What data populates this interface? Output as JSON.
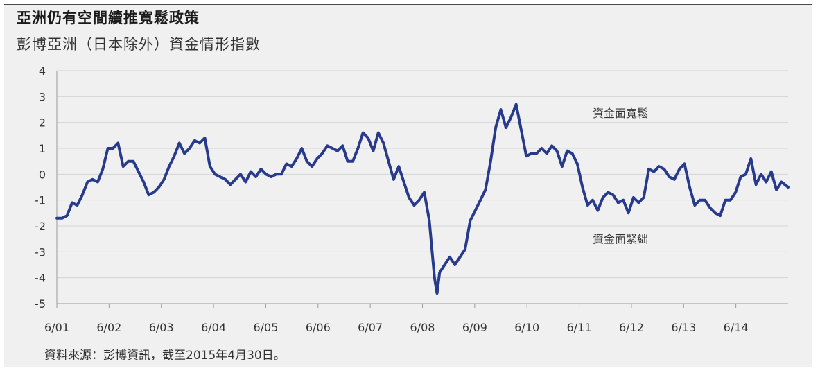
{
  "title": "亞洲仍有空間續推寬鬆政策",
  "subtitle": "彭博亞洲（日本除外）資金情形指數",
  "source": "資料來源：彭博資訊，截至2015年4月30日。",
  "colors": {
    "line": "#283a8c",
    "grid": "#d4d4d4",
    "panel": "#f0f0f0"
  },
  "chart_data": {
    "type": "line",
    "title": "彭博亞洲（日本除外）資金情形指數",
    "xlabel": "",
    "ylabel": "",
    "ylim": [
      -5,
      4
    ],
    "xlim": [
      2001.0,
      2015.33
    ],
    "grid": true,
    "x_ticks": [
      "6/01",
      "6/02",
      "6/03",
      "6/04",
      "6/05",
      "6/06",
      "6/07",
      "6/08",
      "6/09",
      "6/10",
      "6/11",
      "6/12",
      "6/13",
      "6/14"
    ],
    "y_ticks": [
      "4",
      "3",
      "2",
      "1",
      "0",
      "-1",
      "-2",
      "-3",
      "-4",
      "-5"
    ],
    "annotations": [
      {
        "text": "資金面寬鬆",
        "x": 2011.5,
        "y": 2.2
      },
      {
        "text": "資金面緊絀",
        "x": 2011.5,
        "y": -2.65
      }
    ],
    "series": [
      {
        "x": [
          2001.0,
          2001.1,
          2001.2,
          2001.3,
          2001.4,
          2001.5,
          2001.6,
          2001.7,
          2001.8,
          2001.9,
          2002.0,
          2002.1,
          2002.2,
          2002.3,
          2002.4,
          2002.5,
          2002.6,
          2002.7,
          2002.8,
          2002.9,
          2003.0,
          2003.1,
          2003.2,
          2003.3,
          2003.4,
          2003.5,
          2003.6,
          2003.7,
          2003.8,
          2003.9,
          2004.0,
          2004.1,
          2004.2,
          2004.3,
          2004.4,
          2004.5,
          2004.6,
          2004.7,
          2004.8,
          2004.9,
          2005.0,
          2005.1,
          2005.2,
          2005.3,
          2005.4,
          2005.5,
          2005.6,
          2005.7,
          2005.8,
          2005.9,
          2006.0,
          2006.1,
          2006.2,
          2006.3,
          2006.4,
          2006.5,
          2006.6,
          2006.7,
          2006.8,
          2006.9,
          2007.0,
          2007.1,
          2007.2,
          2007.3,
          2007.4,
          2007.5,
          2007.6,
          2007.7,
          2007.8,
          2007.9,
          2008.0,
          2008.1,
          2008.2,
          2008.3,
          2008.4,
          2008.45,
          2008.5,
          2008.6,
          2008.7,
          2008.8,
          2008.9,
          2009.0,
          2009.1,
          2009.2,
          2009.3,
          2009.4,
          2009.5,
          2009.6,
          2009.7,
          2009.8,
          2009.9,
          2010.0,
          2010.1,
          2010.2,
          2010.3,
          2010.4,
          2010.5,
          2010.6,
          2010.7,
          2010.8,
          2010.9,
          2011.0,
          2011.1,
          2011.2,
          2011.3,
          2011.4,
          2011.5,
          2011.6,
          2011.7,
          2011.8,
          2011.9,
          2012.0,
          2012.1,
          2012.2,
          2012.3,
          2012.4,
          2012.5,
          2012.6,
          2012.7,
          2012.8,
          2012.9,
          2013.0,
          2013.1,
          2013.2,
          2013.3,
          2013.4,
          2013.5,
          2013.6,
          2013.7,
          2013.8,
          2013.9,
          2014.0,
          2014.1,
          2014.2,
          2014.3,
          2014.4,
          2014.5,
          2014.6,
          2014.7,
          2014.8,
          2014.9,
          2015.0,
          2015.1,
          2015.2,
          2015.33
        ],
        "values": [
          -1.7,
          -1.7,
          -1.6,
          -1.1,
          -1.2,
          -0.8,
          -0.3,
          -0.2,
          -0.3,
          0.2,
          1.0,
          1.0,
          1.2,
          0.3,
          0.5,
          0.5,
          0.1,
          -0.3,
          -0.8,
          -0.7,
          -0.5,
          -0.2,
          0.3,
          0.7,
          1.2,
          0.8,
          1.0,
          1.3,
          1.2,
          1.4,
          0.3,
          0.0,
          -0.1,
          -0.2,
          -0.4,
          -0.2,
          0.0,
          -0.3,
          0.1,
          -0.1,
          0.2,
          0.0,
          -0.1,
          0.0,
          0.0,
          0.4,
          0.3,
          0.6,
          1.0,
          0.5,
          0.3,
          0.6,
          0.8,
          1.1,
          1.0,
          0.9,
          1.1,
          0.5,
          0.5,
          1.0,
          1.6,
          1.4,
          0.9,
          1.6,
          1.2,
          0.5,
          -0.2,
          0.3,
          -0.3,
          -0.9,
          -1.2,
          -1.0,
          -0.7,
          -1.8,
          -4.0,
          -4.6,
          -3.8,
          -3.5,
          -3.2,
          -3.5,
          -3.2,
          -2.9,
          -1.8,
          -1.4,
          -1.0,
          -0.6,
          0.5,
          1.8,
          2.5,
          1.8,
          2.2,
          2.7,
          1.7,
          0.7,
          0.8,
          0.8,
          1.0,
          0.8,
          1.1,
          0.9,
          0.3,
          0.9,
          0.8,
          0.4,
          -0.5,
          -1.2,
          -1.0,
          -1.4,
          -0.9,
          -0.7,
          -0.8,
          -1.1,
          -1.0,
          -1.5,
          -0.9,
          -1.1,
          -0.9,
          0.2,
          0.1,
          0.3,
          0.2,
          -0.1,
          -0.2,
          0.2,
          0.4,
          -0.5,
          -1.2,
          -1.0,
          -1.0,
          -1.3,
          -1.5,
          -1.6,
          -1.0,
          -1.0,
          -0.7,
          -0.1,
          0.0,
          0.6,
          -0.4,
          0.0,
          -0.3,
          0.1,
          -0.6,
          -0.3,
          -0.5
        ]
      }
    ]
  }
}
